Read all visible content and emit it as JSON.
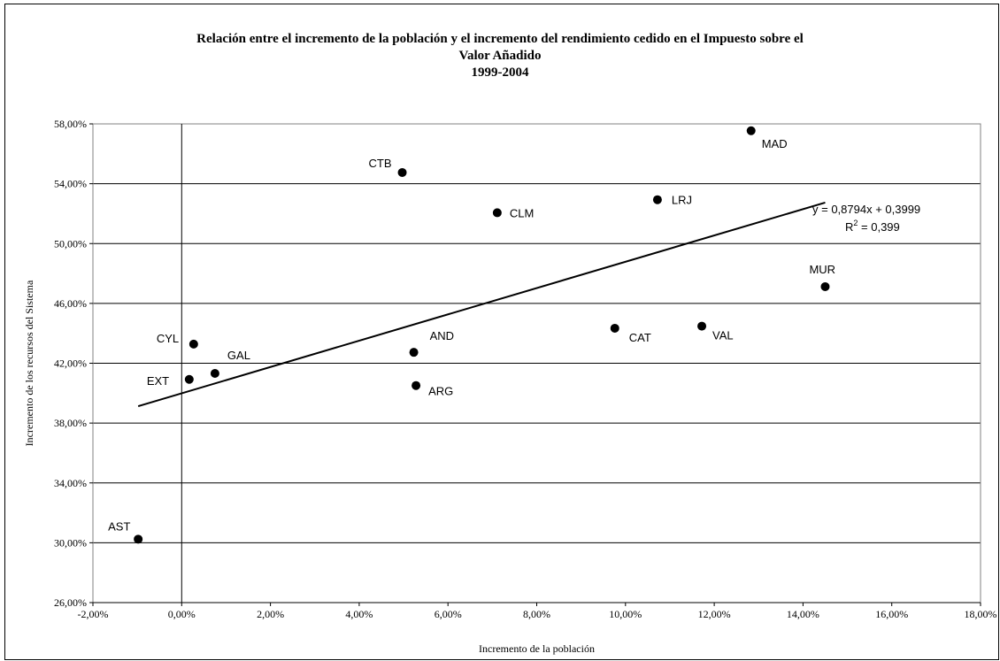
{
  "chart_data": {
    "type": "scatter",
    "title_lines": [
      "Relación entre el incremento de la población y el incremento del rendimiento cedido en el Impuesto sobre el",
      "Valor Añadido",
      "1999-2004"
    ],
    "xlabel": "Incremento de la población",
    "ylabel": "Incremento de los recursos del Sistema",
    "xlim": [
      -0.02,
      0.18
    ],
    "ylim": [
      0.26,
      0.58
    ],
    "x_ticks": [
      "-2,00%",
      "0,00%",
      "2,00%",
      "4,00%",
      "6,00%",
      "8,00%",
      "10,00%",
      "12,00%",
      "14,00%",
      "16,00%",
      "18,00%"
    ],
    "y_ticks": [
      "26,00%",
      "30,00%",
      "34,00%",
      "38,00%",
      "42,00%",
      "46,00%",
      "50,00%",
      "54,00%",
      "58,00%"
    ],
    "grid": "horizontal",
    "points": [
      {
        "label": "AST",
        "x": -0.0098,
        "y": 0.3024
      },
      {
        "label": "EXT",
        "x": 0.0017,
        "y": 0.4092
      },
      {
        "label": "CYL",
        "x": 0.0027,
        "y": 0.4328
      },
      {
        "label": "GAL",
        "x": 0.0075,
        "y": 0.4132
      },
      {
        "label": "AND",
        "x": 0.0523,
        "y": 0.4273
      },
      {
        "label": "ARG",
        "x": 0.0528,
        "y": 0.4051
      },
      {
        "label": "CTB",
        "x": 0.0497,
        "y": 0.5475
      },
      {
        "label": "CLM",
        "x": 0.0711,
        "y": 0.5206
      },
      {
        "label": "CAT",
        "x": 0.0976,
        "y": 0.4434
      },
      {
        "label": "LRJ",
        "x": 0.1072,
        "y": 0.5293
      },
      {
        "label": "VAL",
        "x": 0.1172,
        "y": 0.4448
      },
      {
        "label": "MAD",
        "x": 0.1283,
        "y": 0.5754
      },
      {
        "label": "MUR",
        "x": 0.145,
        "y": 0.4712
      }
    ],
    "trendline": {
      "slope": 0.8794,
      "intercept": 0.3999,
      "x_range": [
        -0.0098,
        0.145
      ],
      "equation": "y = 0,8794x + 0,3999",
      "r2_prefix": "R",
      "r2_exp": "2",
      "r2_suffix": " = 0,399"
    }
  }
}
